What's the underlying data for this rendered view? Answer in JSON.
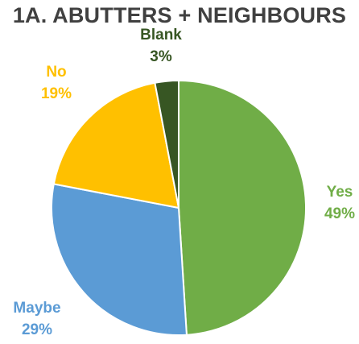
{
  "chart_data": {
    "type": "pie",
    "title": "1A. ABUTTERS + NEIGHBOURS",
    "slices": [
      {
        "label": "Yes",
        "value": 49,
        "value_label": "49%",
        "color": "#70ad47",
        "label_color": "#70ad47"
      },
      {
        "label": "Maybe",
        "value": 29,
        "value_label": "29%",
        "color": "#5b9bd5",
        "label_color": "#5b9bd5"
      },
      {
        "label": "No",
        "value": 19,
        "value_label": "19%",
        "color": "#ffc000",
        "label_color": "#ffc000"
      },
      {
        "label": "Blank",
        "value": 3,
        "value_label": "3%",
        "color": "#375623",
        "label_color": "#375623"
      }
    ],
    "start_angle_deg": 0,
    "direction": "clockwise",
    "slice_border_color": "#ffffff",
    "legend": "none"
  }
}
